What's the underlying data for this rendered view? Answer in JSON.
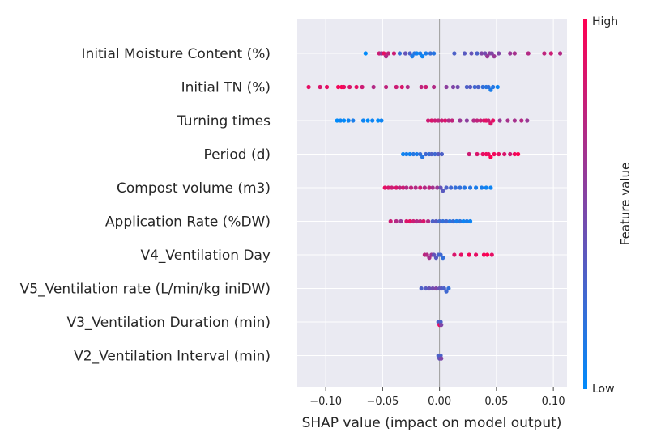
{
  "chart_data": {
    "type": "scatter",
    "subtype": "shap-beeswarm",
    "xlabel": "SHAP value (impact on model output)",
    "xlim": [
      -0.125,
      0.112
    ],
    "xticks": [
      -0.1,
      -0.05,
      0.0,
      0.05,
      0.1
    ],
    "xtick_labels": [
      "−0.10",
      "−0.05",
      "0.00",
      "0.05",
      "0.10"
    ],
    "zero_line": 0.0,
    "grid": true,
    "colorbar": {
      "title": "Feature value",
      "high_label": "High",
      "low_label": "Low",
      "low_color": "#008bfb",
      "high_color": "#ff0052"
    },
    "features": [
      {
        "name": "Initial Moisture Content (%)",
        "points": [
          [
            -0.065,
            0.0
          ],
          [
            -0.053,
            0.8
          ],
          [
            -0.051,
            0.6
          ],
          [
            -0.049,
            0.9
          ],
          [
            -0.047,
            0.7
          ],
          [
            -0.045,
            0.75
          ],
          [
            -0.04,
            0.8
          ],
          [
            -0.035,
            0.2
          ],
          [
            -0.03,
            0.4
          ],
          [
            -0.026,
            0.3
          ],
          [
            -0.024,
            0.1
          ],
          [
            -0.022,
            0.15
          ],
          [
            -0.02,
            0.05
          ],
          [
            -0.017,
            0.1
          ],
          [
            -0.015,
            0.05
          ],
          [
            -0.012,
            0.1
          ],
          [
            -0.008,
            0.2
          ],
          [
            -0.005,
            0.15
          ],
          [
            0.013,
            0.3
          ],
          [
            0.022,
            0.35
          ],
          [
            0.028,
            0.4
          ],
          [
            0.033,
            0.3
          ],
          [
            0.037,
            0.5
          ],
          [
            0.04,
            0.45
          ],
          [
            0.042,
            0.6
          ],
          [
            0.044,
            0.55
          ],
          [
            0.046,
            0.5
          ],
          [
            0.048,
            0.6
          ],
          [
            0.052,
            0.5
          ],
          [
            0.062,
            0.6
          ],
          [
            0.066,
            0.65
          ],
          [
            0.078,
            0.7
          ],
          [
            0.092,
            0.75
          ],
          [
            0.098,
            0.8
          ],
          [
            0.106,
            0.7
          ]
        ]
      },
      {
        "name": "Initial TN (%)",
        "points": [
          [
            -0.115,
            0.9
          ],
          [
            -0.105,
            0.85
          ],
          [
            -0.099,
            0.9
          ],
          [
            -0.089,
            0.95
          ],
          [
            -0.086,
            1.0
          ],
          [
            -0.084,
            0.9
          ],
          [
            -0.079,
            0.85
          ],
          [
            -0.073,
            0.9
          ],
          [
            -0.068,
            0.8
          ],
          [
            -0.058,
            0.7
          ],
          [
            -0.047,
            0.75
          ],
          [
            -0.038,
            0.8
          ],
          [
            -0.033,
            0.85
          ],
          [
            -0.028,
            0.7
          ],
          [
            -0.016,
            0.75
          ],
          [
            -0.012,
            0.8
          ],
          [
            -0.005,
            0.7
          ],
          [
            0.006,
            0.55
          ],
          [
            0.012,
            0.5
          ],
          [
            0.016,
            0.45
          ],
          [
            0.024,
            0.3
          ],
          [
            0.027,
            0.35
          ],
          [
            0.031,
            0.25
          ],
          [
            0.034,
            0.3
          ],
          [
            0.038,
            0.2
          ],
          [
            0.041,
            0.15
          ],
          [
            0.043,
            0.2
          ],
          [
            0.045,
            0.1
          ],
          [
            0.047,
            0.15
          ],
          [
            0.051,
            0.05
          ]
        ]
      },
      {
        "name": "Turning times",
        "points": [
          [
            -0.09,
            0.0
          ],
          [
            -0.087,
            0.05
          ],
          [
            -0.084,
            0.0
          ],
          [
            -0.08,
            0.05
          ],
          [
            -0.076,
            0.1
          ],
          [
            -0.067,
            0.05
          ],
          [
            -0.063,
            0.0
          ],
          [
            -0.059,
            0.05
          ],
          [
            -0.054,
            0.0
          ],
          [
            -0.051,
            0.05
          ],
          [
            -0.01,
            0.8
          ],
          [
            -0.007,
            0.85
          ],
          [
            -0.004,
            0.8
          ],
          [
            -0.001,
            0.75
          ],
          [
            0.002,
            0.8
          ],
          [
            0.005,
            0.85
          ],
          [
            0.008,
            0.7
          ],
          [
            0.011,
            0.75
          ],
          [
            0.018,
            0.6
          ],
          [
            0.024,
            0.55
          ],
          [
            0.03,
            0.7
          ],
          [
            0.033,
            0.75
          ],
          [
            0.036,
            0.8
          ],
          [
            0.039,
            0.85
          ],
          [
            0.041,
            0.9
          ],
          [
            0.043,
            0.8
          ],
          [
            0.045,
            0.85
          ],
          [
            0.047,
            0.9
          ],
          [
            0.053,
            0.6
          ],
          [
            0.06,
            0.65
          ],
          [
            0.066,
            0.65
          ],
          [
            0.072,
            0.7
          ],
          [
            0.077,
            0.6
          ]
        ]
      },
      {
        "name": "Period (d)",
        "points": [
          [
            -0.032,
            0.05
          ],
          [
            -0.029,
            0.1
          ],
          [
            -0.026,
            0.05
          ],
          [
            -0.023,
            0.15
          ],
          [
            -0.02,
            0.1
          ],
          [
            -0.017,
            0.2
          ],
          [
            -0.015,
            0.15
          ],
          [
            -0.012,
            0.25
          ],
          [
            -0.009,
            0.2
          ],
          [
            -0.007,
            0.3
          ],
          [
            -0.004,
            0.25
          ],
          [
            -0.001,
            0.35
          ],
          [
            0.002,
            0.3
          ],
          [
            0.026,
            0.8
          ],
          [
            0.033,
            0.85
          ],
          [
            0.038,
            0.9
          ],
          [
            0.041,
            0.95
          ],
          [
            0.043,
            0.9
          ],
          [
            0.045,
            1.0
          ],
          [
            0.048,
            0.95
          ],
          [
            0.052,
            0.9
          ],
          [
            0.057,
            0.85
          ],
          [
            0.062,
            0.8
          ],
          [
            0.066,
            0.95
          ],
          [
            0.069,
            1.0
          ]
        ]
      },
      {
        "name": "Compost volume (m3)",
        "points": [
          [
            -0.048,
            0.9
          ],
          [
            -0.045,
            0.85
          ],
          [
            -0.042,
            0.8
          ],
          [
            -0.038,
            0.85
          ],
          [
            -0.035,
            0.75
          ],
          [
            -0.032,
            0.8
          ],
          [
            -0.029,
            0.7
          ],
          [
            -0.025,
            0.75
          ],
          [
            -0.021,
            0.7
          ],
          [
            -0.017,
            0.8
          ],
          [
            -0.013,
            0.7
          ],
          [
            -0.009,
            0.75
          ],
          [
            -0.006,
            0.65
          ],
          [
            -0.002,
            0.6
          ],
          [
            0.001,
            0.4
          ],
          [
            0.003,
            0.35
          ],
          [
            0.006,
            0.3
          ],
          [
            0.01,
            0.25
          ],
          [
            0.014,
            0.2
          ],
          [
            0.018,
            0.2
          ],
          [
            0.022,
            0.15
          ],
          [
            0.027,
            0.15
          ],
          [
            0.032,
            0.1
          ],
          [
            0.037,
            0.1
          ],
          [
            0.041,
            0.05
          ],
          [
            0.045,
            0.05
          ]
        ]
      },
      {
        "name": "Application Rate (%DW)",
        "points": [
          [
            -0.043,
            0.8
          ],
          [
            -0.038,
            0.7
          ],
          [
            -0.034,
            0.6
          ],
          [
            -0.029,
            0.85
          ],
          [
            -0.026,
            0.9
          ],
          [
            -0.023,
            0.8
          ],
          [
            -0.02,
            0.7
          ],
          [
            -0.017,
            0.75
          ],
          [
            -0.014,
            0.85
          ],
          [
            -0.01,
            0.7
          ],
          [
            -0.006,
            0.3
          ],
          [
            -0.003,
            0.35
          ],
          [
            0.0,
            0.25
          ],
          [
            0.003,
            0.2
          ],
          [
            0.006,
            0.25
          ],
          [
            0.009,
            0.15
          ],
          [
            0.012,
            0.2
          ],
          [
            0.015,
            0.1
          ],
          [
            0.018,
            0.15
          ],
          [
            0.021,
            0.05
          ],
          [
            0.024,
            0.1
          ],
          [
            0.027,
            0.05
          ]
        ]
      },
      {
        "name": "V4_Ventilation Day",
        "points": [
          [
            -0.013,
            0.75
          ],
          [
            -0.011,
            0.7
          ],
          [
            -0.009,
            0.65
          ],
          [
            -0.007,
            0.6
          ],
          [
            -0.005,
            0.4
          ],
          [
            -0.003,
            0.35
          ],
          [
            -0.001,
            0.3
          ],
          [
            0.001,
            0.25
          ],
          [
            0.003,
            0.2
          ],
          [
            0.013,
            0.85
          ],
          [
            0.019,
            0.9
          ],
          [
            0.026,
            0.95
          ],
          [
            0.032,
            0.9
          ],
          [
            0.039,
            0.95
          ],
          [
            0.042,
            1.0
          ],
          [
            0.046,
            0.9
          ]
        ]
      },
      {
        "name": "V5_Ventilation rate (L/min/kg iniDW)",
        "points": [
          [
            -0.016,
            0.3
          ],
          [
            -0.012,
            0.35
          ],
          [
            -0.009,
            0.4
          ],
          [
            -0.006,
            0.45
          ],
          [
            -0.003,
            0.5
          ],
          [
            0.0,
            0.4
          ],
          [
            0.002,
            0.35
          ],
          [
            0.004,
            0.3
          ],
          [
            0.006,
            0.25
          ],
          [
            0.008,
            0.2
          ]
        ]
      },
      {
        "name": "V3_Ventilation Duration (min)",
        "points": [
          [
            -0.001,
            0.3
          ],
          [
            0.0,
            0.9
          ],
          [
            0.001,
            0.3
          ],
          [
            0.0015,
            0.5
          ]
        ]
      },
      {
        "name": "V2_Ventilation Interval (min)",
        "points": [
          [
            -0.001,
            0.3
          ],
          [
            0.0,
            0.4
          ],
          [
            0.001,
            0.3
          ],
          [
            0.0015,
            0.5
          ]
        ]
      }
    ]
  }
}
